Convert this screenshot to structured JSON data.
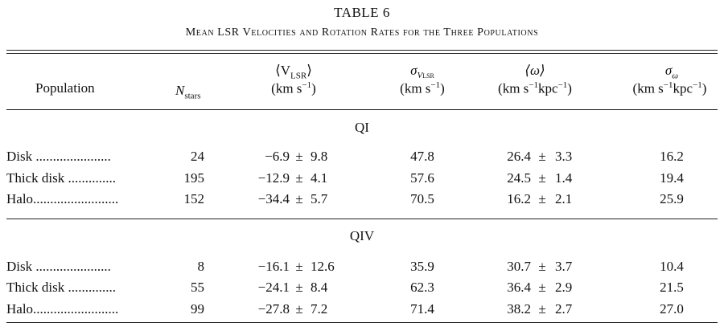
{
  "table": {
    "label": "TABLE 6",
    "caption": "Mean LSR Velocities and Rotation Rates for the Three Populations",
    "headers": {
      "population": "Population",
      "nstars_main": "N",
      "nstars_sub": "stars",
      "vlsr_main": "⟨V",
      "vlsr_sub": "LSR",
      "vlsr_close": "⟩",
      "vlsr_unit": "(km s",
      "vlsr_unit_sup": "−1",
      "vlsr_unit_close": ")",
      "sigv_main": "σ",
      "sigv_sub": "V",
      "sigv_subsub": "LSR",
      "sigv_unit": "(km s",
      "sigv_unit_sup": "−1",
      "sigv_unit_close": ")",
      "omega_main": "⟨ω⟩",
      "omega_unit": "(km s",
      "omega_unit_sup1": "−1",
      "omega_unit_mid": "kpc",
      "omega_unit_sup2": "−1",
      "omega_unit_close": ")",
      "sigo_main": "σ",
      "sigo_sub": "ω",
      "sigo_unit": "(km s",
      "sigo_unit_sup1": "−1",
      "sigo_unit_mid": "kpc",
      "sigo_unit_sup2": "−1",
      "sigo_unit_close": ")"
    },
    "sections": [
      {
        "title": "QI",
        "rows": [
          {
            "population": "Disk ......................",
            "n": "24",
            "v": "−6.9",
            "v_err": "9.8",
            "sigv": "47.8",
            "omega": "26.4",
            "omega_err": "3.3",
            "sigo": "16.2"
          },
          {
            "population": "Thick disk ..............",
            "n": "195",
            "v": "−12.9",
            "v_err": "4.1",
            "sigv": "57.6",
            "omega": "24.5",
            "omega_err": "1.4",
            "sigo": "19.4"
          },
          {
            "population": "Halo.........................",
            "n": "152",
            "v": "−34.4",
            "v_err": "5.7",
            "sigv": "70.5",
            "omega": "16.2",
            "omega_err": "2.1",
            "sigo": "25.9"
          }
        ]
      },
      {
        "title": "QIV",
        "rows": [
          {
            "population": "Disk ......................",
            "n": "8",
            "v": "−16.1",
            "v_err": "12.6",
            "sigv": "35.9",
            "omega": "30.7",
            "omega_err": "3.7",
            "sigo": "10.4"
          },
          {
            "population": "Thick disk ..............",
            "n": "55",
            "v": "−24.1",
            "v_err": "8.4",
            "sigv": "62.3",
            "omega": "36.4",
            "omega_err": "2.9",
            "sigo": "21.5"
          },
          {
            "population": "Halo.........................",
            "n": "99",
            "v": "−27.8",
            "v_err": "7.2",
            "sigv": "71.4",
            "omega": "38.2",
            "omega_err": "2.7",
            "sigo": "27.0"
          }
        ]
      }
    ],
    "pm_symbol": "±"
  }
}
